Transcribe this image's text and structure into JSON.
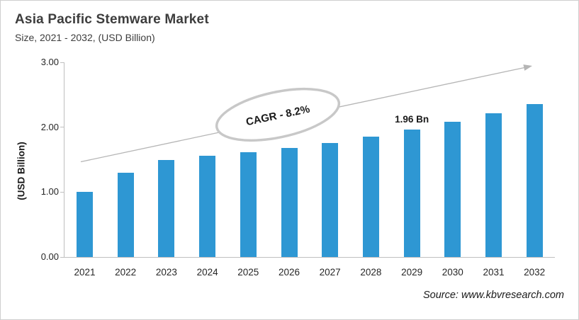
{
  "header": {
    "title": "Asia Pacific Stemware Market",
    "subtitle": "Size, 2021 - 2032, (USD Billion)"
  },
  "footer": {
    "source": "Source: www.kbvresearch.com"
  },
  "annotations": {
    "cagr_label": "CAGR - 8.2%",
    "trend_arrow": "upward-trend-arrow"
  },
  "colors": {
    "bar": "#2E97D3",
    "axis": "#bfbfbf",
    "arrow": "#b5b5b5",
    "ellipse_stroke": "#c8c8c8",
    "title_text": "#3d3d3d",
    "tick_text": "#262626"
  },
  "chart_data": {
    "type": "bar",
    "title": "Asia Pacific Stemware Market",
    "subtitle": "Size, 2021 - 2032, (USD Billion)",
    "categories": [
      "2021",
      "2022",
      "2023",
      "2024",
      "2025",
      "2026",
      "2027",
      "2028",
      "2029",
      "2030",
      "2031",
      "2032"
    ],
    "values": [
      1.0,
      1.3,
      1.49,
      1.56,
      1.62,
      1.68,
      1.76,
      1.86,
      1.96,
      2.08,
      2.21,
      2.36
    ],
    "xlabel": "",
    "ylabel": "(USD Billion)",
    "ylim": [
      0,
      3
    ],
    "yticks": [
      0,
      1,
      2,
      3
    ],
    "ytick_labels": [
      "0.00",
      "1.00",
      "2.00",
      "3.00"
    ],
    "grid": false,
    "legend": false,
    "bar_color": "#2E97D3",
    "data_labels": [
      {
        "category": "2029",
        "text": "1.96 Bn"
      }
    ],
    "annotations": [
      {
        "type": "ellipse-callout",
        "text": "CAGR - 8.2%"
      },
      {
        "type": "trend-arrow",
        "direction": "up-right"
      }
    ]
  }
}
